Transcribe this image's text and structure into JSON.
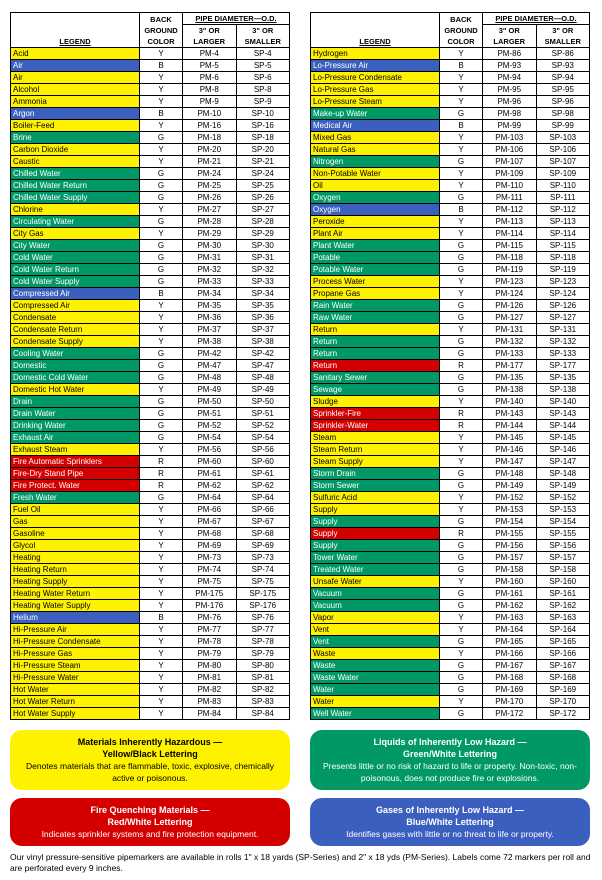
{
  "colors": {
    "Y": "#fff200",
    "G": "#009966",
    "B": "#3b5fbf",
    "R": "#d40000",
    "W": "#ffffff"
  },
  "text_on": {
    "Y": "#000",
    "G": "#fff",
    "B": "#fff",
    "R": "#fff",
    "W": "#000"
  },
  "headers": {
    "legend": "LEGEND",
    "bg": "BACK\nGROUND\nCOLOR",
    "pipe": "PIPE DIAMETER—O.D.",
    "lg": "3\" OR\nLARGER",
    "sm": "3\" OR\nSMALLER"
  },
  "left": [
    [
      "Acid",
      "Y",
      "PM-4",
      "SP-4"
    ],
    [
      "Air",
      "B",
      "PM-5",
      "SP-5"
    ],
    [
      "Air",
      "Y",
      "PM-6",
      "SP-6"
    ],
    [
      "Alcohol",
      "Y",
      "PM-8",
      "SP-8"
    ],
    [
      "Ammonia",
      "Y",
      "PM-9",
      "SP-9"
    ],
    [
      "Argon",
      "B",
      "PM-10",
      "SP-10"
    ],
    [
      "Boiler-Feed",
      "Y",
      "PM-16",
      "SP-16"
    ],
    [
      "Brine",
      "G",
      "PM-18",
      "SP-18"
    ],
    [
      "Carbon Dioxide",
      "Y",
      "PM-20",
      "SP-20"
    ],
    [
      "Caustic",
      "Y",
      "PM-21",
      "SP-21"
    ],
    [
      "Chilled Water",
      "G",
      "PM-24",
      "SP-24"
    ],
    [
      "Chilled Water Return",
      "G",
      "PM-25",
      "SP-25"
    ],
    [
      "Chilled Water Supply",
      "G",
      "PM-26",
      "SP-26"
    ],
    [
      "Chlorine",
      "Y",
      "PM-27",
      "SP-27"
    ],
    [
      "Circulating Water",
      "G",
      "PM-28",
      "SP-28"
    ],
    [
      "City Gas",
      "Y",
      "PM-29",
      "SP-29"
    ],
    [
      "City Water",
      "G",
      "PM-30",
      "SP-30"
    ],
    [
      "Cold Water",
      "G",
      "PM-31",
      "SP-31"
    ],
    [
      "Cold Water Return",
      "G",
      "PM-32",
      "SP-32"
    ],
    [
      "Cold Water Supply",
      "G",
      "PM-33",
      "SP-33"
    ],
    [
      "Compressed Air",
      "B",
      "PM-34",
      "SP-34"
    ],
    [
      "Compressed Air",
      "Y",
      "PM-35",
      "SP-35"
    ],
    [
      "Condensate",
      "Y",
      "PM-36",
      "SP-36"
    ],
    [
      "Condensate Return",
      "Y",
      "PM-37",
      "SP-37"
    ],
    [
      "Condensate Supply",
      "Y",
      "PM-38",
      "SP-38"
    ],
    [
      "Cooling Water",
      "G",
      "PM-42",
      "SP-42"
    ],
    [
      "Domestic",
      "G",
      "PM-47",
      "SP-47"
    ],
    [
      "Domestic Cold Water",
      "G",
      "PM-48",
      "SP-48"
    ],
    [
      "Domestic Hot Water",
      "Y",
      "PM-49",
      "SP-49"
    ],
    [
      "Drain",
      "G",
      "PM-50",
      "SP-50"
    ],
    [
      "Drain Water",
      "G",
      "PM-51",
      "SP-51"
    ],
    [
      "Drinking Water",
      "G",
      "PM-52",
      "SP-52"
    ],
    [
      "Exhaust Air",
      "G",
      "PM-54",
      "SP-54"
    ],
    [
      "Exhaust Steam",
      "Y",
      "PM-56",
      "SP-56"
    ],
    [
      "Fire Automatic Sprinklers",
      "R",
      "PM-60",
      "SP-60"
    ],
    [
      "Fire-Dry Stand Pipe",
      "R",
      "PM-61",
      "SP-61"
    ],
    [
      "Fire Protect. Water",
      "R",
      "PM-62",
      "SP-62"
    ],
    [
      "Fresh Water",
      "G",
      "PM-64",
      "SP-64"
    ],
    [
      "Fuel Oil",
      "Y",
      "PM-66",
      "SP-66"
    ],
    [
      "Gas",
      "Y",
      "PM-67",
      "SP-67"
    ],
    [
      "Gasoline",
      "Y",
      "PM-68",
      "SP-68"
    ],
    [
      "Glycol",
      "Y",
      "PM-69",
      "SP-69"
    ],
    [
      "Heating",
      "Y",
      "PM-73",
      "SP-73"
    ],
    [
      "Heating Return",
      "Y",
      "PM-74",
      "SP-74"
    ],
    [
      "Heating Supply",
      "Y",
      "PM-75",
      "SP-75"
    ],
    [
      "Heating Water Return",
      "Y",
      "PM-175",
      "SP-175"
    ],
    [
      "Heating Water Supply",
      "Y",
      "PM-176",
      "SP-176"
    ],
    [
      "Helium",
      "B",
      "PM-76",
      "SP-76"
    ],
    [
      "Hi-Pressure Air",
      "Y",
      "PM-77",
      "SP-77"
    ],
    [
      "Hi-Pressure Condensate",
      "Y",
      "PM-78",
      "SP-78"
    ],
    [
      "Hi-Pressure Gas",
      "Y",
      "PM-79",
      "SP-79"
    ],
    [
      "Hi-Pressure Steam",
      "Y",
      "PM-80",
      "SP-80"
    ],
    [
      "Hi-Pressure Water",
      "Y",
      "PM-81",
      "SP-81"
    ],
    [
      "Hot Water",
      "Y",
      "PM-82",
      "SP-82"
    ],
    [
      "Hot Water Return",
      "Y",
      "PM-83",
      "SP-83"
    ],
    [
      "Hot Water Supply",
      "Y",
      "PM-84",
      "SP-84"
    ]
  ],
  "right": [
    [
      "Hydrogen",
      "Y",
      "PM-86",
      "SP-86"
    ],
    [
      "Lo-Pressure Air",
      "B",
      "PM-93",
      "SP-93"
    ],
    [
      "Lo-Pressure Condensate",
      "Y",
      "PM-94",
      "SP-94"
    ],
    [
      "Lo-Pressure Gas",
      "Y",
      "PM-95",
      "SP-95"
    ],
    [
      "Lo-Pressure Steam",
      "Y",
      "PM-96",
      "SP-96"
    ],
    [
      "Make-up Water",
      "G",
      "PM-98",
      "SP-98"
    ],
    [
      "Medical Air",
      "B",
      "PM-99",
      "SP-99"
    ],
    [
      "Mixed Gas",
      "Y",
      "PM-103",
      "SP-103"
    ],
    [
      "Natural Gas",
      "Y",
      "PM-106",
      "SP-106"
    ],
    [
      "Nitrogen",
      "G",
      "PM-107",
      "SP-107"
    ],
    [
      "Non-Potable Water",
      "Y",
      "PM-109",
      "SP-109"
    ],
    [
      "Oil",
      "Y",
      "PM-110",
      "SP-110"
    ],
    [
      "Oxygen",
      "G",
      "PM-111",
      "SP-111"
    ],
    [
      "Oxygen",
      "B",
      "PM-112",
      "SP-112"
    ],
    [
      "Peroxide",
      "Y",
      "PM-113",
      "SP-113"
    ],
    [
      "Plant Air",
      "Y",
      "PM-114",
      "SP-114"
    ],
    [
      "Plant Water",
      "G",
      "PM-115",
      "SP-115"
    ],
    [
      "Potable",
      "G",
      "PM-118",
      "SP-118"
    ],
    [
      "Potable Water",
      "G",
      "PM-119",
      "SP-119"
    ],
    [
      "Process Water",
      "Y",
      "PM-123",
      "SP-123"
    ],
    [
      "Propane Gas",
      "Y",
      "PM-124",
      "SP-124"
    ],
    [
      "Rain Water",
      "G",
      "PM-126",
      "SP-126"
    ],
    [
      "Raw Water",
      "G",
      "PM-127",
      "SP-127"
    ],
    [
      "Return",
      "Y",
      "PM-131",
      "SP-131"
    ],
    [
      "Return",
      "G",
      "PM-132",
      "SP-132"
    ],
    [
      "Return",
      "G",
      "PM-133",
      "SP-133"
    ],
    [
      "Return",
      "R",
      "PM-177",
      "SP-177"
    ],
    [
      "Sanitary Sewer",
      "G",
      "PM-135",
      "SP-135"
    ],
    [
      "Sewage",
      "G",
      "PM-138",
      "SP-138"
    ],
    [
      "Sludge",
      "Y",
      "PM-140",
      "SP-140"
    ],
    [
      "Sprinkler-Fire",
      "R",
      "PM-143",
      "SP-143"
    ],
    [
      "Sprinkler-Water",
      "R",
      "PM-144",
      "SP-144"
    ],
    [
      "Steam",
      "Y",
      "PM-145",
      "SP-145"
    ],
    [
      "Steam Return",
      "Y",
      "PM-146",
      "SP-146"
    ],
    [
      "Steam Supply",
      "Y",
      "PM-147",
      "SP-147"
    ],
    [
      "Storm Drain",
      "G",
      "PM-148",
      "SP-148"
    ],
    [
      "Storm Sewer",
      "G",
      "PM-149",
      "SP-149"
    ],
    [
      "Sulfuric Acid",
      "Y",
      "PM-152",
      "SP-152"
    ],
    [
      "Supply",
      "Y",
      "PM-153",
      "SP-153"
    ],
    [
      "Supply",
      "G",
      "PM-154",
      "SP-154"
    ],
    [
      "Supply",
      "R",
      "PM-155",
      "SP-155"
    ],
    [
      "Supply",
      "G",
      "PM-156",
      "SP-156"
    ],
    [
      "Tower Water",
      "G",
      "PM-157",
      "SP-157"
    ],
    [
      "Treated Water",
      "G",
      "PM-158",
      "SP-158"
    ],
    [
      "Unsafe Water",
      "Y",
      "PM-160",
      "SP-160"
    ],
    [
      "Vacuum",
      "G",
      "PM-161",
      "SP-161"
    ],
    [
      "Vacuum",
      "G",
      "PM-162",
      "SP-162"
    ],
    [
      "Vapor",
      "Y",
      "PM-163",
      "SP-163"
    ],
    [
      "Vent",
      "Y",
      "PM-164",
      "SP-164"
    ],
    [
      "Vent",
      "G",
      "PM-165",
      "SP-165"
    ],
    [
      "Waste",
      "Y",
      "PM-166",
      "SP-166"
    ],
    [
      "Waste",
      "G",
      "PM-167",
      "SP-167"
    ],
    [
      "Waste Water",
      "G",
      "PM-168",
      "SP-168"
    ],
    [
      "Water",
      "G",
      "PM-169",
      "SP-169"
    ],
    [
      "Water",
      "Y",
      "PM-170",
      "SP-170"
    ],
    [
      "Well Water",
      "G",
      "PM-172",
      "SP-172"
    ]
  ],
  "boxes": [
    {
      "bg": "#fff200",
      "fg": "#000",
      "title": "Materials Inherently Hazardous —",
      "t2": "Yellow/Black Lettering",
      "sub": "Denotes materials that are flammable, toxic, explosive, chemically active or poisonous."
    },
    {
      "bg": "#009966",
      "fg": "#fff",
      "title": "Liquids of Inherently Low Hazard —",
      "t2": "Green/White Lettering",
      "sub": "Presents little or no risk of hazard to life or property. Non-toxic, non-poisonous, does not produce fire or explosions."
    },
    {
      "bg": "#d40000",
      "fg": "#fff",
      "title": "Fire Quenching Materials —",
      "t2": "Red/White Lettering",
      "sub": "Indicates sprinkler systems and fire protection equipment."
    },
    {
      "bg": "#3b5fbf",
      "fg": "#fff",
      "title": "Gases of Inherently Low Hazard —",
      "t2": "Blue/White Lettering",
      "sub": "Identifies gases with little or no threat to life or property."
    }
  ],
  "footer": "Our vinyl pressure-sensitive pipemarkers are available in rolls 1\" x 18 yards (SP-Series) and 2\" x 18 yds (PM-Series). Labels come 72 markers per roll and are perforated every 9 inches."
}
